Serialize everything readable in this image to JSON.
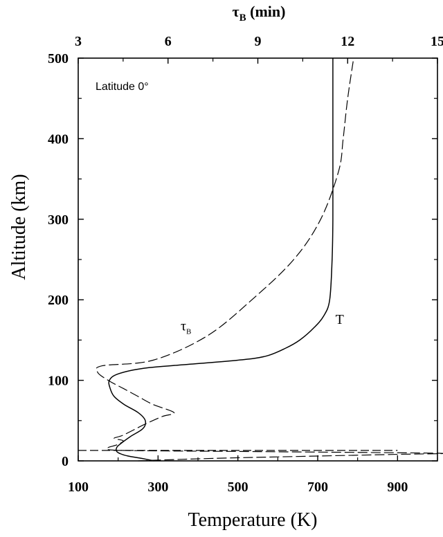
{
  "chart_data": {
    "type": "line",
    "annotation": "Latitude 0°",
    "x_bottom": {
      "label": "Temperature (K)",
      "range": [
        100,
        1000
      ],
      "ticks": [
        100,
        300,
        500,
        700,
        900
      ]
    },
    "x_top": {
      "label": "τ",
      "label_sub": "B",
      "label_units": " (min)",
      "range": [
        3,
        15
      ],
      "ticks": [
        3,
        6,
        9,
        12,
        15
      ]
    },
    "y": {
      "label": "Altitude (km)",
      "range": [
        0,
        500
      ],
      "ticks": [
        0,
        100,
        200,
        300,
        400,
        500
      ]
    },
    "series": [
      {
        "name": "T",
        "axis": "bottom",
        "style": "solid",
        "color": "#000000",
        "points": [
          [
            290,
            0
          ],
          [
            260,
            3
          ],
          [
            225,
            6
          ],
          [
            205,
            9
          ],
          [
            196,
            12
          ],
          [
            196,
            16
          ],
          [
            203,
            20
          ],
          [
            230,
            30
          ],
          [
            262,
            40
          ],
          [
            268,
            50
          ],
          [
            250,
            60
          ],
          [
            215,
            70
          ],
          [
            190,
            80
          ],
          [
            180,
            90
          ],
          [
            178,
            100
          ],
          [
            200,
            108
          ],
          [
            265,
            115
          ],
          [
            380,
            120
          ],
          [
            500,
            125
          ],
          [
            570,
            130
          ],
          [
            620,
            140
          ],
          [
            655,
            150
          ],
          [
            690,
            165
          ],
          [
            715,
            180
          ],
          [
            730,
            200
          ],
          [
            736,
            250
          ],
          [
            738,
            300
          ],
          [
            738,
            400
          ],
          [
            738,
            500
          ]
        ]
      },
      {
        "name": "τ",
        "name_sub": "B",
        "axis": "top",
        "style": "dashed",
        "color": "#000000",
        "points": [
          [
            5.0,
            0
          ],
          [
            6.5,
            2
          ],
          [
            8.5,
            4
          ],
          [
            11.0,
            6
          ],
          [
            13.5,
            8
          ],
          [
            15.0,
            9.5
          ],
          [
            9.0,
            11.5
          ],
          [
            4.5,
            13.0
          ],
          [
            4.0,
            16
          ],
          [
            4.3,
            20
          ],
          [
            4.5,
            25
          ],
          [
            4.2,
            28
          ],
          [
            4.5,
            32
          ],
          [
            5.2,
            45
          ],
          [
            5.8,
            55
          ],
          [
            6.2,
            60
          ],
          [
            5.5,
            70
          ],
          [
            5.0,
            80
          ],
          [
            4.5,
            90
          ],
          [
            4.0,
            100
          ],
          [
            3.65,
            110
          ],
          [
            3.8,
            118
          ],
          [
            5.5,
            125
          ],
          [
            7.3,
            155
          ],
          [
            8.8,
            200
          ],
          [
            10.2,
            250
          ],
          [
            11.1,
            300
          ],
          [
            11.7,
            360
          ],
          [
            11.85,
            400
          ],
          [
            12.0,
            450
          ],
          [
            12.2,
            500
          ]
        ]
      },
      {
        "name": "",
        "axis": "bottom",
        "style": "dashed-horizontal",
        "color": "#000000",
        "points": [
          [
            100,
            13
          ],
          [
            900,
            13
          ]
        ]
      }
    ],
    "curve_labels": [
      {
        "text": "T",
        "x": 755,
        "y": 170,
        "axis": "bottom"
      },
      {
        "text": "τ",
        "sub": "B",
        "x": 6.6,
        "y": 162,
        "axis": "top"
      }
    ],
    "grid": false
  }
}
